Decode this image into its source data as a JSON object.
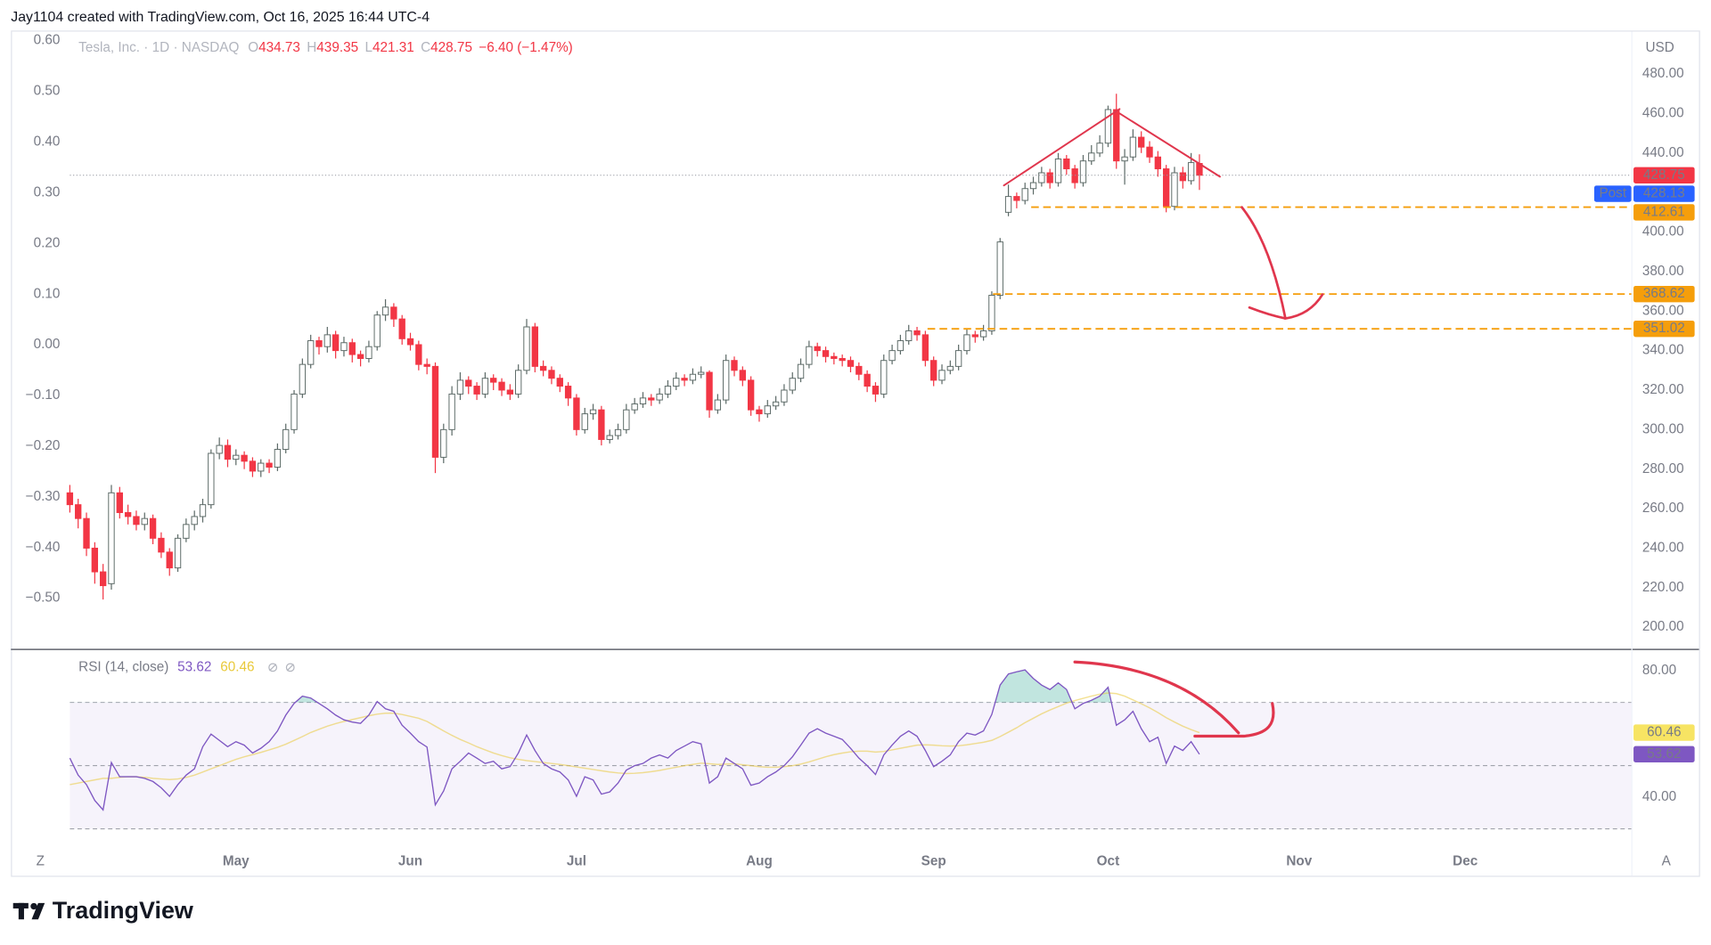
{
  "header": {
    "attribution": "Jay1104 created with TradingView.com, Oct 16, 2025 16:44 UTC-4"
  },
  "chart_data": {
    "type": "candlestick",
    "symbol": "Tesla, Inc. · 1D · NASDAQ",
    "ohlc_labels": [
      "O",
      "H",
      "L",
      "C"
    ],
    "change_label": "−6.40 (−1.47%)",
    "currency": "USD",
    "up_color": "#089981",
    "down_color": "#f23645",
    "ohlc": [
      [
        268,
        272,
        258,
        262
      ],
      [
        262,
        265,
        250,
        255
      ],
      [
        255,
        258,
        236,
        240
      ],
      [
        240,
        243,
        222,
        228
      ],
      [
        228,
        232,
        214,
        221
      ],
      [
        222,
        272,
        219,
        268
      ],
      [
        268,
        271,
        255,
        258
      ],
      [
        258,
        262,
        252,
        256
      ],
      [
        256,
        259,
        249,
        252
      ],
      [
        252,
        258,
        249,
        255
      ],
      [
        255,
        257,
        242,
        245
      ],
      [
        245,
        248,
        235,
        238
      ],
      [
        238,
        240,
        226,
        230
      ],
      [
        230,
        247,
        228,
        245
      ],
      [
        245,
        255,
        243,
        252
      ],
      [
        252,
        259,
        249,
        256
      ],
      [
        256,
        265,
        253,
        262
      ],
      [
        262,
        290,
        260,
        288
      ],
      [
        288,
        296,
        285,
        292
      ],
      [
        292,
        295,
        281,
        285
      ],
      [
        285,
        290,
        282,
        287
      ],
      [
        287,
        289,
        280,
        284
      ],
      [
        284,
        286,
        276,
        279
      ],
      [
        279,
        285,
        276,
        283
      ],
      [
        283,
        285,
        278,
        281
      ],
      [
        281,
        293,
        279,
        290
      ],
      [
        290,
        303,
        288,
        300
      ],
      [
        300,
        320,
        298,
        318
      ],
      [
        318,
        336,
        316,
        333
      ],
      [
        333,
        348,
        331,
        345
      ],
      [
        345,
        347,
        338,
        342
      ],
      [
        342,
        352,
        339,
        348
      ],
      [
        348,
        350,
        336,
        340
      ],
      [
        340,
        347,
        337,
        344
      ],
      [
        344,
        346,
        334,
        338
      ],
      [
        338,
        340,
        332,
        336
      ],
      [
        336,
        345,
        334,
        342
      ],
      [
        342,
        360,
        340,
        358
      ],
      [
        358,
        366,
        355,
        362
      ],
      [
        362,
        364,
        352,
        356
      ],
      [
        356,
        358,
        343,
        346
      ],
      [
        346,
        349,
        340,
        343
      ],
      [
        343,
        345,
        330,
        333
      ],
      [
        333,
        336,
        328,
        332
      ],
      [
        332,
        334,
        278,
        286
      ],
      [
        286,
        303,
        283,
        300
      ],
      [
        300,
        322,
        297,
        318
      ],
      [
        318,
        329,
        315,
        325
      ],
      [
        325,
        327,
        318,
        322
      ],
      [
        322,
        324,
        315,
        318
      ],
      [
        318,
        329,
        316,
        326
      ],
      [
        326,
        328,
        320,
        324
      ],
      [
        324,
        326,
        317,
        320
      ],
      [
        320,
        323,
        315,
        318
      ],
      [
        318,
        333,
        316,
        330
      ],
      [
        330,
        356,
        328,
        352
      ],
      [
        352,
        354,
        329,
        332
      ],
      [
        332,
        335,
        327,
        330
      ],
      [
        330,
        332,
        323,
        326
      ],
      [
        326,
        328,
        319,
        322
      ],
      [
        322,
        324,
        312,
        316
      ],
      [
        316,
        318,
        297,
        300
      ],
      [
        300,
        311,
        298,
        308
      ],
      [
        308,
        313,
        305,
        310
      ],
      [
        310,
        312,
        292,
        295
      ],
      [
        295,
        300,
        293,
        297
      ],
      [
        297,
        303,
        295,
        300
      ],
      [
        300,
        313,
        298,
        310
      ],
      [
        310,
        316,
        308,
        313
      ],
      [
        313,
        319,
        311,
        316
      ],
      [
        316,
        318,
        312,
        315
      ],
      [
        315,
        321,
        313,
        318
      ],
      [
        318,
        325,
        316,
        322
      ],
      [
        322,
        329,
        320,
        326
      ],
      [
        326,
        328,
        322,
        325
      ],
      [
        325,
        331,
        323,
        328
      ],
      [
        328,
        332,
        326,
        329
      ],
      [
        329,
        330,
        306,
        310
      ],
      [
        310,
        318,
        308,
        315
      ],
      [
        315,
        338,
        313,
        335
      ],
      [
        335,
        337,
        327,
        330
      ],
      [
        330,
        332,
        322,
        325
      ],
      [
        325,
        327,
        307,
        310
      ],
      [
        310,
        312,
        304,
        308
      ],
      [
        308,
        315,
        306,
        312
      ],
      [
        312,
        317,
        310,
        314
      ],
      [
        314,
        323,
        312,
        320
      ],
      [
        320,
        329,
        318,
        326
      ],
      [
        326,
        336,
        324,
        333
      ],
      [
        333,
        345,
        331,
        342
      ],
      [
        342,
        344,
        337,
        340
      ],
      [
        340,
        342,
        334,
        337
      ],
      [
        337,
        339,
        333,
        336
      ],
      [
        336,
        338,
        332,
        335
      ],
      [
        335,
        337,
        329,
        332
      ],
      [
        332,
        334,
        325,
        328
      ],
      [
        328,
        330,
        319,
        322
      ],
      [
        322,
        324,
        314,
        318
      ],
      [
        318,
        338,
        316,
        335
      ],
      [
        335,
        343,
        333,
        340
      ],
      [
        340,
        348,
        338,
        345
      ],
      [
        345,
        353,
        343,
        350
      ],
      [
        350,
        352,
        345,
        348
      ],
      [
        348,
        350,
        332,
        335
      ],
      [
        335,
        337,
        322,
        325
      ],
      [
        325,
        333,
        323,
        330
      ],
      [
        330,
        335,
        328,
        332
      ],
      [
        332,
        343,
        330,
        340
      ],
      [
        340,
        351,
        338,
        348
      ],
      [
        348,
        350,
        344,
        347
      ],
      [
        347,
        353,
        345,
        350
      ],
      [
        350,
        370,
        348,
        368
      ],
      [
        368,
        397,
        366,
        395
      ],
      [
        410,
        424,
        408,
        418
      ],
      [
        418,
        420,
        412,
        416
      ],
      [
        416,
        425,
        414,
        422
      ],
      [
        422,
        428,
        419,
        425
      ],
      [
        425,
        433,
        423,
        430
      ],
      [
        430,
        432,
        422,
        425
      ],
      [
        425,
        440,
        423,
        437
      ],
      [
        437,
        439,
        429,
        432
      ],
      [
        432,
        434,
        422,
        425
      ],
      [
        425,
        439,
        423,
        436
      ],
      [
        436,
        444,
        434,
        440
      ],
      [
        440,
        449,
        438,
        445
      ],
      [
        445,
        464,
        443,
        462
      ],
      [
        462,
        470,
        432,
        436
      ],
      [
        436,
        442,
        424,
        438
      ],
      [
        438,
        452,
        436,
        448
      ],
      [
        448,
        451,
        440,
        443
      ],
      [
        443,
        446,
        435,
        438
      ],
      [
        438,
        441,
        428,
        432
      ],
      [
        432,
        434,
        410,
        413
      ],
      [
        413,
        433,
        411,
        430
      ],
      [
        430,
        433,
        422,
        426
      ],
      [
        426,
        440,
        424,
        435.15
      ],
      [
        434.73,
        439.35,
        421.31,
        428.75
      ]
    ],
    "xlim": [
      0,
      188
    ],
    "xticks": [
      {
        "value": 20,
        "label": "May"
      },
      {
        "value": 41,
        "label": "Jun"
      },
      {
        "value": 61,
        "label": "Jul"
      },
      {
        "value": 83,
        "label": "Aug"
      },
      {
        "value": 104,
        "label": "Sep"
      },
      {
        "value": 125,
        "label": "Oct"
      },
      {
        "value": 148,
        "label": "Nov"
      },
      {
        "value": 168,
        "label": "Dec"
      }
    ],
    "ylim": [
      189,
      502
    ],
    "yticks": [
      {
        "value": 200,
        "label": "200.00"
      },
      {
        "value": 220,
        "label": "220.00"
      },
      {
        "value": 240,
        "label": "240.00"
      },
      {
        "value": 260,
        "label": "260.00"
      },
      {
        "value": 280,
        "label": "280.00"
      },
      {
        "value": 300,
        "label": "300.00"
      },
      {
        "value": 320,
        "label": "320.00"
      },
      {
        "value": 340,
        "label": "340.00"
      },
      {
        "value": 360,
        "label": "360.00"
      },
      {
        "value": 380,
        "label": "380.00"
      },
      {
        "value": 400,
        "label": "400.00"
      },
      {
        "value": 440,
        "label": "440.00"
      },
      {
        "value": 460,
        "label": "460.00"
      },
      {
        "value": 480,
        "label": "480.00"
      }
    ],
    "left_ylim": [
      -0.6,
      0.62
    ],
    "left_yticks": [
      {
        "value": 0.6,
        "label": "0.60"
      },
      {
        "value": 0.5,
        "label": "0.50"
      },
      {
        "value": 0.4,
        "label": "0.40"
      },
      {
        "value": 0.3,
        "label": "0.30"
      },
      {
        "value": 0.2,
        "label": "0.20"
      },
      {
        "value": 0.1,
        "label": "0.10"
      },
      {
        "value": 0,
        "label": "0.00"
      },
      {
        "value": -0.1,
        "label": "−0.10"
      },
      {
        "value": -0.2,
        "label": "−0.20"
      },
      {
        "value": -0.3,
        "label": "−0.30"
      },
      {
        "value": -0.4,
        "label": "−0.40"
      },
      {
        "value": -0.5,
        "label": "−0.50"
      }
    ],
    "post_market": {
      "label": "Post",
      "value": 428.13,
      "color": "#2962ff"
    },
    "levels": {
      "color": "#f59e0b",
      "values": [
        412.61,
        368.62,
        351.02
      ]
    },
    "rsi": {
      "title": "RSI (14, close)",
      "color": "#7e57c2",
      "ma_color": "#e9c93a",
      "values": [
        52.4,
        47,
        44,
        39,
        36,
        51,
        46.5,
        46.5,
        46.5,
        46,
        45,
        43,
        40.3,
        44,
        47,
        49,
        56,
        60,
        58,
        56,
        57.6,
        56.5,
        54,
        55.5,
        57.6,
        61,
        66,
        69.7,
        72,
        71.4,
        69.7,
        68,
        66,
        64.5,
        63.8,
        63.4,
        66,
        70.3,
        68,
        67.2,
        62.8,
        60.3,
        57.6,
        55.9,
        37.6,
        42,
        49,
        51.4,
        54,
        52.4,
        50.7,
        51.4,
        49,
        49.7,
        54,
        59.7,
        54.8,
        50.7,
        49,
        48,
        45.5,
        40.3,
        46.5,
        45.5,
        41,
        41.7,
        44.5,
        48.6,
        50,
        50.7,
        52.4,
        53.4,
        52.4,
        54.8,
        56.2,
        57.6,
        56.9,
        44.5,
        46.5,
        52.4,
        50.7,
        49,
        43.8,
        44.5,
        46.5,
        48,
        50,
        52.8,
        56.5,
        60.3,
        61.7,
        60.3,
        59.3,
        58.3,
        55.5,
        52.4,
        50,
        47.2,
        53.4,
        56.5,
        59.3,
        61,
        59.3,
        54.8,
        49.7,
        51.4,
        53.4,
        57.6,
        60.3,
        59.7,
        61,
        66.2,
        75.5,
        79,
        79.7,
        80.3,
        77.6,
        75.5,
        74.1,
        76.2,
        74.1,
        68,
        69.7,
        70.7,
        72,
        74.8,
        62.8,
        64.5,
        67.2,
        61.7,
        57.6,
        59,
        50.7,
        56.2,
        54.8,
        57.6,
        53.62
      ],
      "ma_values": [
        44,
        44.5,
        45,
        45.5,
        46,
        46,
        46.3,
        46.5,
        46.5,
        46.3,
        46,
        45.8,
        45.6,
        45.8,
        46.3,
        47,
        48,
        49,
        50,
        51,
        52,
        52.8,
        53.5,
        54.2,
        55,
        55.8,
        56.8,
        58,
        59.2,
        60.5,
        61.5,
        62.5,
        63.3,
        64,
        64.6,
        65.2,
        65.8,
        66.3,
        66.6,
        66.6,
        66.2,
        65.6,
        65,
        64,
        62.5,
        61,
        59.6,
        58.3,
        57.2,
        56,
        55,
        54,
        53.2,
        52.5,
        52,
        51.6,
        51.3,
        51,
        50.7,
        50.4,
        50,
        49.6,
        49.2,
        48.8,
        48.4,
        48,
        47.7,
        47.5,
        47.6,
        47.8,
        48.1,
        48.5,
        49,
        49.5,
        50,
        50.4,
        50.8,
        50.6,
        50.4,
        50.5,
        50.6,
        50.3,
        50,
        49.7,
        49.5,
        49.5,
        49.7,
        50,
        50.5,
        51.2,
        52,
        52.8,
        53.5,
        54,
        54.4,
        54.6,
        54.6,
        54.3,
        54.5,
        55,
        55.5,
        56,
        56.5,
        56.6,
        56.5,
        56.3,
        56.2,
        56.3,
        56.6,
        57,
        57.4,
        58,
        59.2,
        60.6,
        62,
        63.6,
        65,
        66.4,
        67.6,
        68.7,
        69.8,
        70.6,
        71.3,
        72,
        72.6,
        73,
        72.8,
        72,
        70.8,
        69.6,
        68.3,
        66.8,
        65.2,
        63.8,
        62.5,
        61.4,
        60.46
      ],
      "ylim": [
        23.8,
        86.6
      ],
      "yticks": [
        {
          "value": 80,
          "label": "80.00"
        },
        {
          "value": 40,
          "label": "40.00"
        }
      ],
      "bands": [
        70,
        50,
        30
      ]
    },
    "axis_buttons": [
      "Z",
      "A"
    ]
  },
  "footer": {
    "logo": "TradingView"
  }
}
